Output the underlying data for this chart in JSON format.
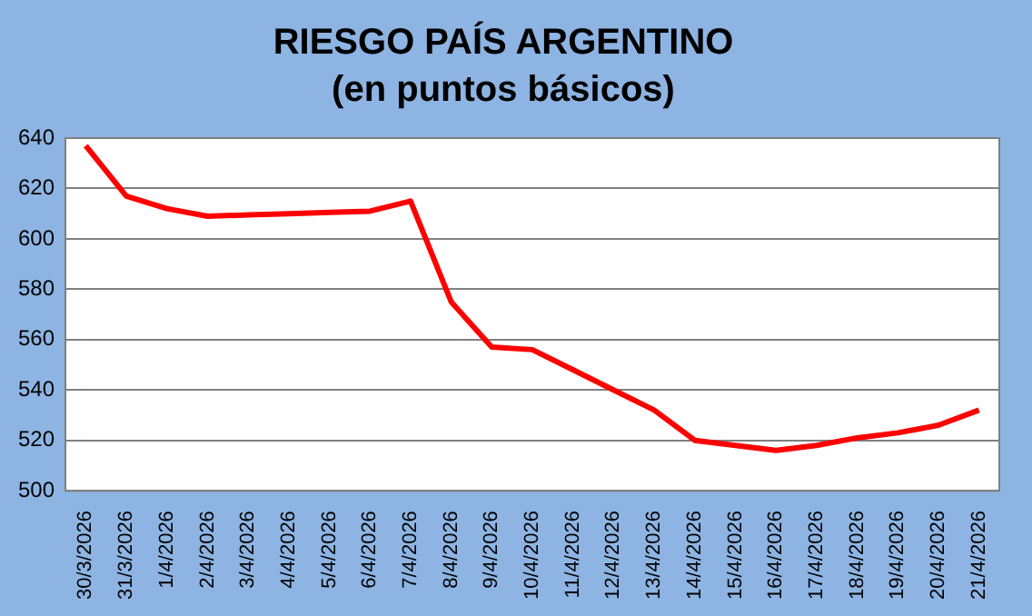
{
  "chart_data": {
    "type": "line",
    "title": "RIESGO PAÍS ARGENTINO",
    "subtitle": "(en puntos básicos)",
    "categories": [
      "30/3/2026",
      "31/3/2026",
      "1/4/2026",
      "2/4/2026",
      "3/4/2026",
      "4/4/2026",
      "5/4/2026",
      "6/4/2026",
      "7/4/2026",
      "8/4/2026",
      "9/4/2026",
      "10/4/2026",
      "11/4/2026",
      "12/4/2026",
      "13/4/2026",
      "14/4/2026",
      "15/4/2026",
      "16/4/2026",
      "17/4/2026",
      "18/4/2026",
      "19/4/2026",
      "20/4/2026",
      "21/4/2026"
    ],
    "series": [
      {
        "color": "#ff0000",
        "values": [
          637,
          617,
          612,
          609,
          609.5,
          610,
          610.5,
          611,
          615,
          575,
          557,
          556,
          548,
          540,
          532,
          520,
          518,
          516,
          518,
          521,
          523,
          526,
          532
        ]
      }
    ],
    "ylim": [
      500,
      640
    ],
    "yticks": [
      500,
      520,
      540,
      560,
      580,
      600,
      620,
      640
    ],
    "grid": "y",
    "legend": false,
    "marker": "none",
    "line_style": "solid"
  }
}
